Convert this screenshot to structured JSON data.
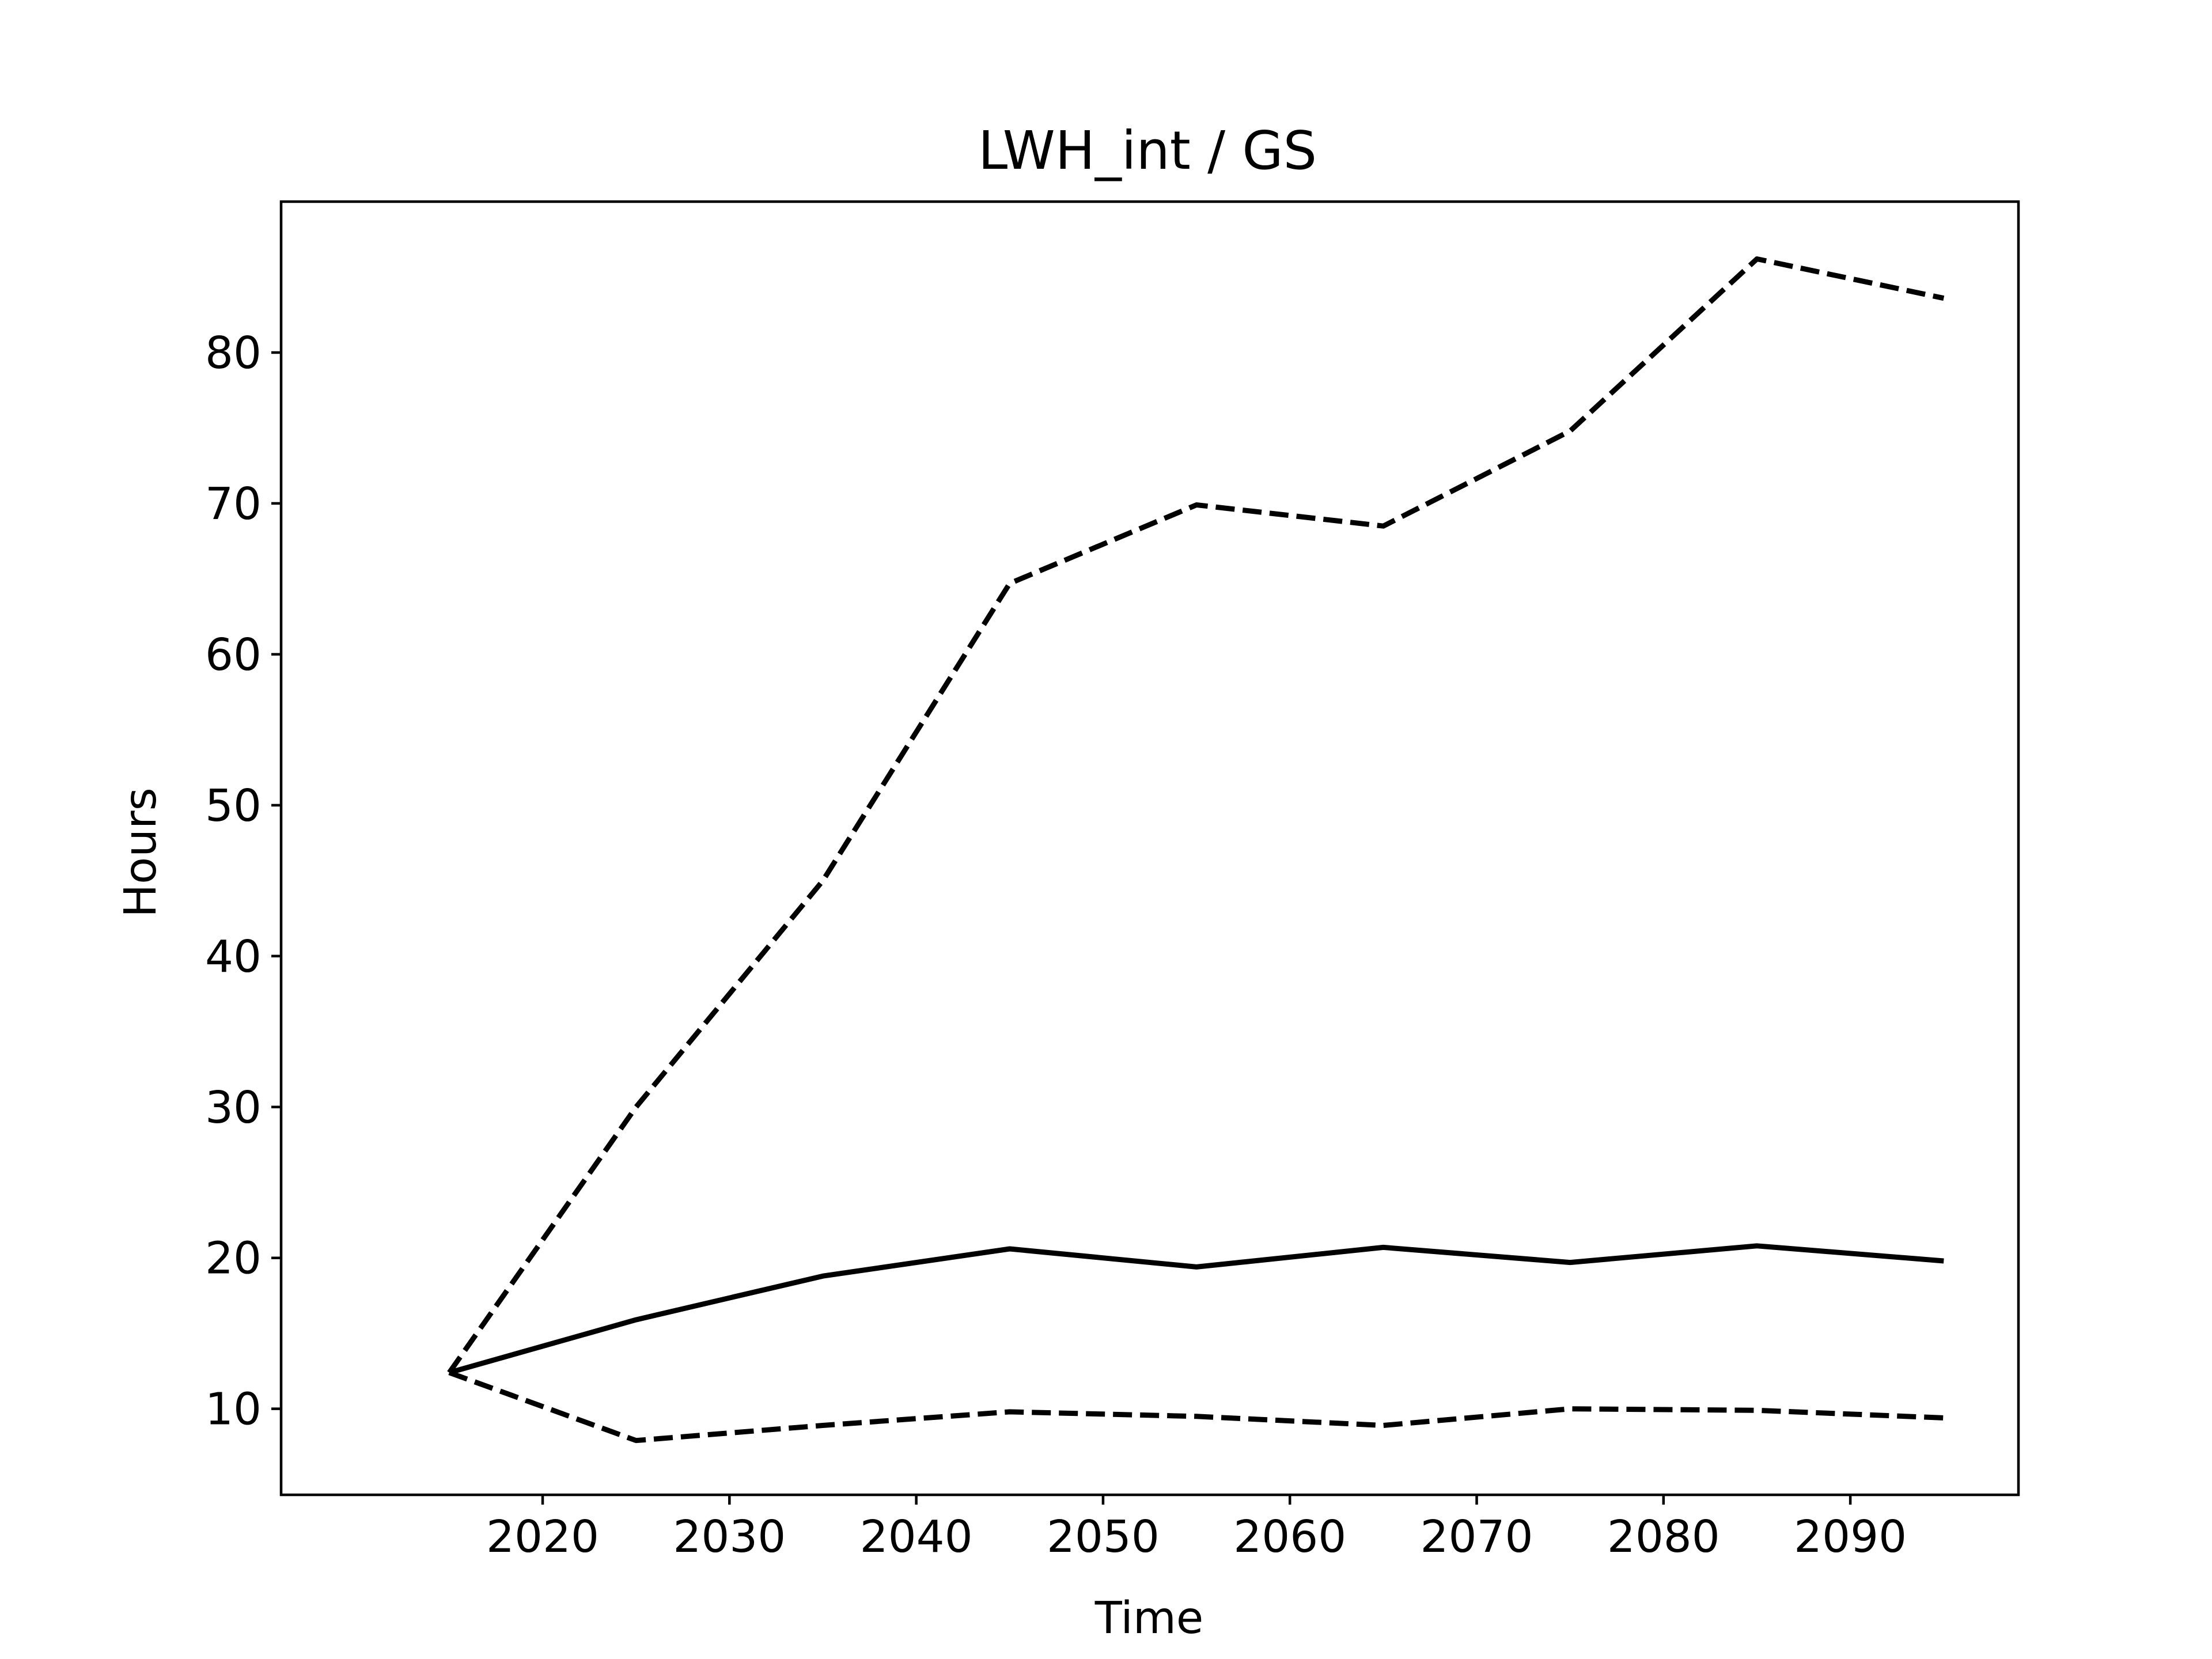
{
  "chart_data": {
    "type": "line",
    "title": "LWH_int / GS",
    "xlabel": "Time",
    "ylabel": "Hours",
    "x": [
      2015,
      2025,
      2035,
      2045,
      2055,
      2065,
      2075,
      2085,
      2095
    ],
    "xlim": [
      2006,
      2099
    ],
    "ylim": [
      4.3,
      90.0
    ],
    "xticks": [
      2020,
      2030,
      2040,
      2050,
      2060,
      2070,
      2080,
      2090
    ],
    "yticks": [
      10,
      20,
      30,
      40,
      50,
      60,
      70,
      80
    ],
    "grid": false,
    "legend": "none",
    "series": [
      {
        "style": "solid",
        "color": "#000000",
        "values": [
          12.4,
          15.9,
          18.8,
          20.6,
          19.4,
          20.7,
          19.7,
          20.8,
          19.8
        ]
      },
      {
        "style": "dashed",
        "color": "#000000",
        "values": [
          12.4,
          30.0,
          45.0,
          64.7,
          69.9,
          68.5,
          74.8,
          86.2,
          83.6
        ]
      },
      {
        "style": "dashed",
        "color": "#000000",
        "values": [
          12.4,
          7.9,
          8.9,
          9.8,
          9.5,
          8.9,
          10.0,
          9.9,
          9.4
        ]
      }
    ]
  }
}
